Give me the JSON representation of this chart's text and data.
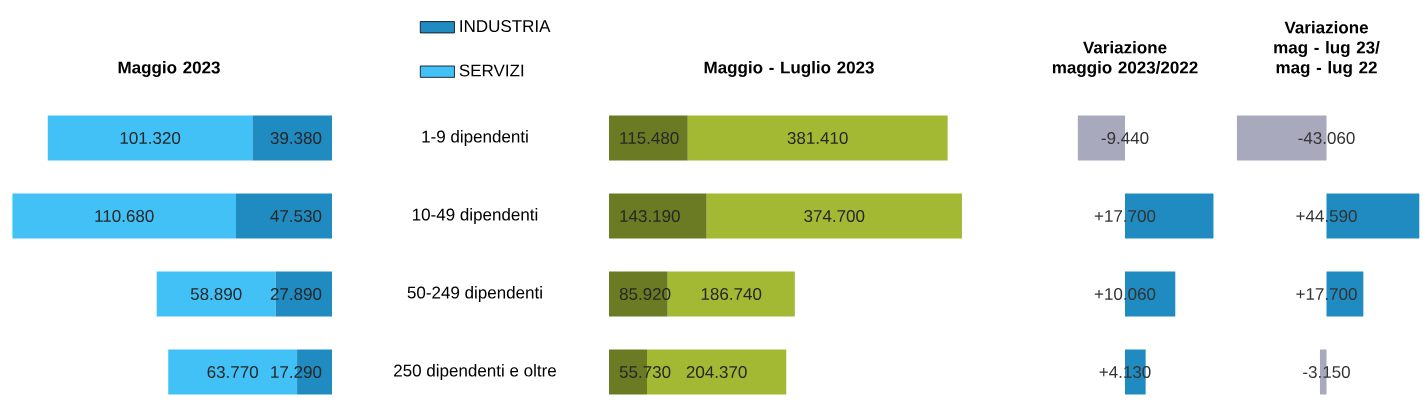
{
  "chart_data": [
    {
      "type": "bar",
      "orientation": "horizontal",
      "stacked": true,
      "title": "Maggio 2023",
      "categories": [
        "1-9 dipendenti",
        "10-49 dipendenti",
        "50-249 dipendenti",
        "250 dipendenti e oltre"
      ],
      "series": [
        {
          "name": "INDUSTRIA",
          "color": "#1f8bc0",
          "values": [
            39380,
            47530,
            27890,
            17290
          ],
          "value_labels": [
            "39.380",
            "47.530",
            "27.890",
            "17.290"
          ]
        },
        {
          "name": "SERVIZI",
          "color": "#41c1f5",
          "values": [
            101320,
            110680,
            58890,
            63770
          ],
          "value_labels": [
            "101.320",
            "110.680",
            "58.890",
            "63.770"
          ]
        }
      ],
      "legend": "top right"
    },
    {
      "type": "bar",
      "orientation": "horizontal",
      "stacked": true,
      "title": "Maggio - Luglio 2023",
      "categories": [
        null,
        null,
        null,
        null
      ],
      "series": [
        {
          "color": "#6b7b23",
          "values": [
            115480,
            143190,
            85920,
            55730
          ],
          "value_labels": [
            "115.480",
            "143.190",
            "85.920",
            "55.730"
          ]
        },
        {
          "color": "#a3b934",
          "values": [
            381410,
            374700,
            186740,
            204370
          ],
          "value_labels": [
            "381.410",
            "374.700",
            "186.740",
            "204.370"
          ]
        }
      ]
    },
    {
      "type": "bar",
      "orientation": "horizontal",
      "title": "Variazione maggio 2023/2022",
      "categories": [
        null,
        null,
        null,
        null
      ],
      "values": [
        -9440,
        17700,
        10060,
        4130
      ],
      "colors": [
        "#a9a9bd",
        "#1f8bc0",
        "#1f8bc0",
        "#1f8bc0"
      ],
      "value_labels": [
        "-9.440",
        "+17.700",
        "+10.060",
        "+4.130"
      ]
    },
    {
      "type": "bar",
      "orientation": "horizontal",
      "title": "Variazione mag - lug 23/ mag - lug 22",
      "categories": [
        null,
        null,
        null,
        null
      ],
      "values": [
        -43060,
        44590,
        17700,
        -3150
      ],
      "colors": [
        "#a9a9bd",
        "#1f8bc0",
        "#1f8bc0",
        "#a9a9bd"
      ],
      "value_labels": [
        "-43.060",
        "+44.590",
        "+17.700",
        "-3.150"
      ]
    }
  ]
}
